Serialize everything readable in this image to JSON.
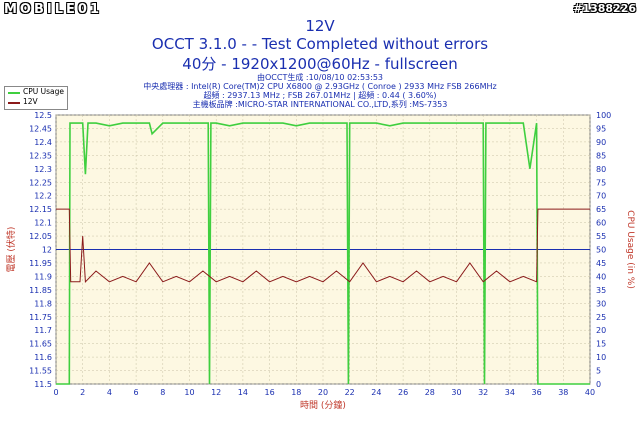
{
  "header": {
    "logo_text": "MOBILE01",
    "watermark": "#1388226",
    "title": "12V",
    "subtitle": "OCCT 3.1.0 -  - Test Completed without errors",
    "settings": "40分 - 1920x1200@60Hz - fullscreen"
  },
  "info_lines": [
    "由OCCT生成 :10/08/10 02:53:53",
    "中央處理器 : Intel(R) Core(TM)2 CPU X6800 @ 2.93GHz ( Conroe ) 2933 MHz FSB 266MHz",
    "超頻 : 2937.13 MHz ; FSB 267.01MHz | 超頻 : 0.44 ( 3.60%)",
    "主機板品牌 :MICRO-STAR INTERNATIONAL CO.,LTD,系列 :MS-7353"
  ],
  "legend": [
    {
      "label": "CPU Usage",
      "color": "#3fcf3f"
    },
    {
      "label": "12V",
      "color": "#8b1a1a"
    }
  ],
  "colors": {
    "plot_bg": "#fdf8e2",
    "grid": "#c9c2a6",
    "cpu": "#3fcf3f",
    "v12": "#8b1a1a",
    "ref": "#1a2fb0",
    "axis_text": "#1a2fb0",
    "ylabel": "#c0392b"
  },
  "chart_data": {
    "type": "line",
    "xlabel": "時間 (分鐘)",
    "ylabel_left": "電壓 (伏特)",
    "ylabel_right": "CPU Usage (in %)",
    "xlim": [
      0,
      40
    ],
    "ylim_left": [
      11.5,
      12.5
    ],
    "ylim_right": [
      0,
      100
    ],
    "x_ticks": [
      0,
      2,
      4,
      6,
      8,
      10,
      12,
      14,
      16,
      18,
      20,
      22,
      24,
      26,
      28,
      30,
      32,
      34,
      36,
      38,
      40
    ],
    "y_ticks_left": [
      "11.5",
      "11.55",
      "11.6",
      "11.65",
      "11.7",
      "11.75",
      "11.8",
      "11.85",
      "11.9",
      "11.95",
      "12",
      "12.05",
      "12.1",
      "12.15",
      "12.2",
      "12.25",
      "12.3",
      "12.35",
      "12.4",
      "12.45",
      "12.5"
    ],
    "y_ticks_right": [
      "0",
      "5",
      "10",
      "15",
      "20",
      "25",
      "30",
      "35",
      "40",
      "45",
      "50",
      "55",
      "60",
      "65",
      "70",
      "75",
      "80",
      "85",
      "90",
      "95",
      "100"
    ],
    "reference_line": 12.0,
    "series": [
      {
        "name": "CPU Usage",
        "axis": "right",
        "x": [
          0,
          1,
          1.05,
          1.1,
          2,
          2.2,
          2.4,
          3,
          4,
          5,
          6,
          7,
          7.2,
          8,
          9,
          10,
          11,
          11.4,
          11.5,
          11.6,
          12,
          13,
          14,
          15,
          16,
          17,
          18,
          19,
          20,
          21,
          21.8,
          21.9,
          22,
          23,
          24,
          25,
          26,
          27,
          28,
          29,
          30,
          31,
          32,
          32.1,
          32.2,
          33,
          34,
          35,
          35.5,
          36,
          36.1,
          40
        ],
        "y": [
          0,
          0,
          97,
          97,
          97,
          78,
          97,
          97,
          96,
          97,
          97,
          97,
          93,
          97,
          97,
          97,
          97,
          97,
          0,
          97,
          97,
          96,
          97,
          97,
          97,
          97,
          96,
          97,
          97,
          97,
          97,
          0,
          97,
          97,
          97,
          96,
          97,
          97,
          97,
          97,
          97,
          97,
          97,
          0,
          97,
          97,
          97,
          97,
          80,
          97,
          0,
          0
        ]
      },
      {
        "name": "12V",
        "axis": "left",
        "x": [
          0,
          0.8,
          1.0,
          1.1,
          1.8,
          2.0,
          2.2,
          3,
          4,
          5,
          6,
          7,
          8,
          9,
          10,
          11,
          12,
          13,
          14,
          15,
          16,
          17,
          18,
          19,
          20,
          21,
          22,
          23,
          24,
          25,
          26,
          27,
          28,
          29,
          30,
          31,
          32,
          33,
          34,
          35,
          36,
          36.1,
          36.3,
          40
        ],
        "y": [
          12.15,
          12.15,
          12.15,
          11.88,
          11.88,
          12.05,
          11.88,
          11.92,
          11.88,
          11.9,
          11.88,
          11.95,
          11.88,
          11.9,
          11.88,
          11.92,
          11.88,
          11.9,
          11.88,
          11.92,
          11.88,
          11.9,
          11.88,
          11.9,
          11.88,
          11.92,
          11.88,
          11.95,
          11.88,
          11.9,
          11.88,
          11.92,
          11.88,
          11.9,
          11.88,
          11.95,
          11.88,
          11.92,
          11.88,
          11.9,
          11.88,
          12.15,
          12.15,
          12.15
        ]
      }
    ]
  }
}
